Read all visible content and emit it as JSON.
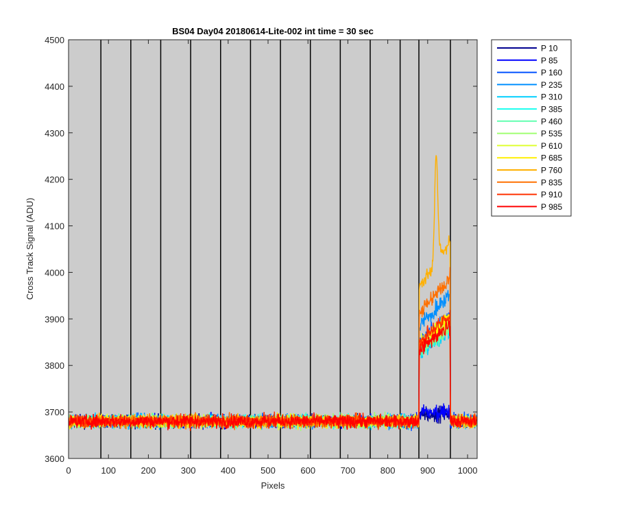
{
  "chart_data": {
    "type": "line",
    "title": "BS04 Day04 20180614-Lite-002 int time = 30 sec",
    "xlabel": "Pixels",
    "ylabel": "Cross Track Signal (ADU)",
    "xlim": [
      0,
      1024
    ],
    "ylim": [
      3600,
      4500
    ],
    "xticks": [
      0,
      100,
      200,
      300,
      400,
      500,
      600,
      700,
      800,
      900,
      1000
    ],
    "yticks": [
      3600,
      3700,
      3800,
      3900,
      4000,
      4100,
      4200,
      4300,
      4400,
      4500
    ],
    "background": "#cccccc",
    "vertical_lines_at": [
      81,
      156,
      231,
      306,
      381,
      456,
      531,
      606,
      681,
      756,
      831,
      878,
      957
    ],
    "baseline_mean": 3680,
    "baseline_noise": 10,
    "feature_region": [
      878,
      957
    ],
    "legend_position": "outside-right",
    "series": [
      {
        "name": "P 10",
        "color": "#00008f",
        "peak_level": 3695
      },
      {
        "name": "P 85",
        "color": "#0000ff",
        "peak_level": 3700
      },
      {
        "name": "P 160",
        "color": "#0050ff",
        "peak_level": 3880
      },
      {
        "name": "P 235",
        "color": "#008fff",
        "peak_level": 3920
      },
      {
        "name": "P 310",
        "color": "#00cfff",
        "peak_level": 3850
      },
      {
        "name": "P 385",
        "color": "#1fffef",
        "peak_level": 3860
      },
      {
        "name": "P 460",
        "color": "#60ffaf",
        "peak_level": 3855
      },
      {
        "name": "P 535",
        "color": "#9fff70",
        "peak_level": 3860
      },
      {
        "name": "P 610",
        "color": "#dfff30",
        "peak_level": 3870
      },
      {
        "name": "P 685",
        "color": "#ffef00",
        "peak_level": 3875
      },
      {
        "name": "P 760",
        "color": "#ffb000",
        "peak_level": 4200
      },
      {
        "name": "P 835",
        "color": "#ff7000",
        "peak_level": 3950
      },
      {
        "name": "P 910",
        "color": "#ff3000",
        "peak_level": 3880
      },
      {
        "name": "P 985",
        "color": "#ff0000",
        "peak_level": 3860
      }
    ]
  }
}
